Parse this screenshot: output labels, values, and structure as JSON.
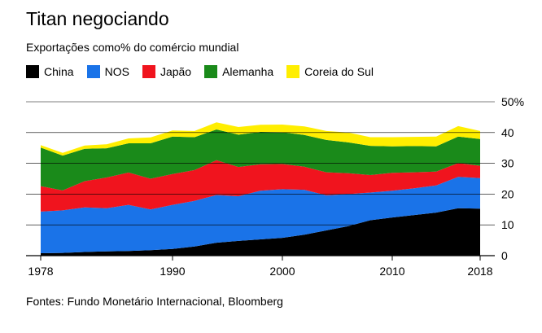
{
  "title": "Titan negociando",
  "subtitle": "Exportações como% do comércio mundial",
  "source": "Fontes: Fundo Monetário Internacional, Bloomberg",
  "legend": [
    {
      "label": "China",
      "color": "#000000"
    },
    {
      "label": "NOS",
      "color": "#1a73e8"
    },
    {
      "label": "Japão",
      "color": "#f0141e"
    },
    {
      "label": "Alemanha",
      "color": "#1a8a1a"
    },
    {
      "label": "Coreia do Sul",
      "color": "#ffee00"
    }
  ],
  "chart_data": {
    "type": "area",
    "stacked": true,
    "x": [
      1978,
      1980,
      1982,
      1984,
      1986,
      1988,
      1990,
      1992,
      1994,
      1996,
      1998,
      2000,
      2002,
      2004,
      2006,
      2008,
      2010,
      2012,
      2014,
      2016,
      2018
    ],
    "series": [
      {
        "name": "China",
        "color": "#000000",
        "values": [
          0.8,
          0.9,
          1.2,
          1.4,
          1.5,
          1.8,
          2.2,
          3.0,
          4.2,
          4.8,
          5.3,
          5.8,
          6.8,
          8.2,
          9.6,
          11.5,
          12.4,
          13.2,
          14.0,
          15.4,
          15.3
        ]
      },
      {
        "name": "NOS",
        "color": "#1a73e8",
        "values": [
          13.5,
          13.8,
          14.5,
          14.0,
          15.0,
          13.2,
          14.3,
          14.8,
          15.5,
          14.5,
          15.8,
          15.8,
          14.6,
          11.4,
          10.4,
          9.0,
          8.7,
          8.7,
          8.8,
          10.2,
          9.9
        ]
      },
      {
        "name": "Japão",
        "color": "#f0141e",
        "values": [
          8.3,
          6.5,
          8.5,
          10.0,
          10.5,
          10.0,
          10.0,
          10.0,
          11.3,
          9.5,
          8.6,
          8.2,
          7.5,
          7.5,
          6.8,
          5.7,
          5.8,
          5.2,
          4.5,
          4.5,
          4.0
        ]
      },
      {
        "name": "Alemanha",
        "color": "#1a8a1a",
        "values": [
          12.5,
          11.3,
          10.5,
          9.5,
          9.5,
          11.5,
          12.2,
          10.7,
          10.0,
          10.5,
          10.5,
          10.3,
          10.3,
          10.5,
          10.0,
          9.5,
          8.6,
          8.5,
          8.2,
          8.6,
          8.7
        ]
      },
      {
        "name": "Coreia do Sul",
        "color": "#ffee00",
        "values": [
          0.8,
          0.9,
          1.1,
          1.3,
          1.6,
          1.9,
          2.0,
          2.0,
          2.3,
          2.5,
          2.3,
          2.5,
          2.8,
          2.9,
          3.2,
          2.8,
          3.0,
          3.0,
          3.2,
          3.4,
          2.6
        ]
      }
    ],
    "ylim": [
      0,
      50
    ],
    "yticks": [
      0,
      10,
      20,
      30,
      40,
      50
    ],
    "yticklabels": [
      "0",
      "10",
      "20",
      "30",
      "40",
      "50%"
    ],
    "xticks": [
      1978,
      1990,
      2000,
      2010,
      2018
    ],
    "xticklabels": [
      "1978",
      "1990",
      "2000",
      "2010",
      "2018"
    ],
    "xlim": [
      1978,
      2018
    ],
    "grid": true
  }
}
